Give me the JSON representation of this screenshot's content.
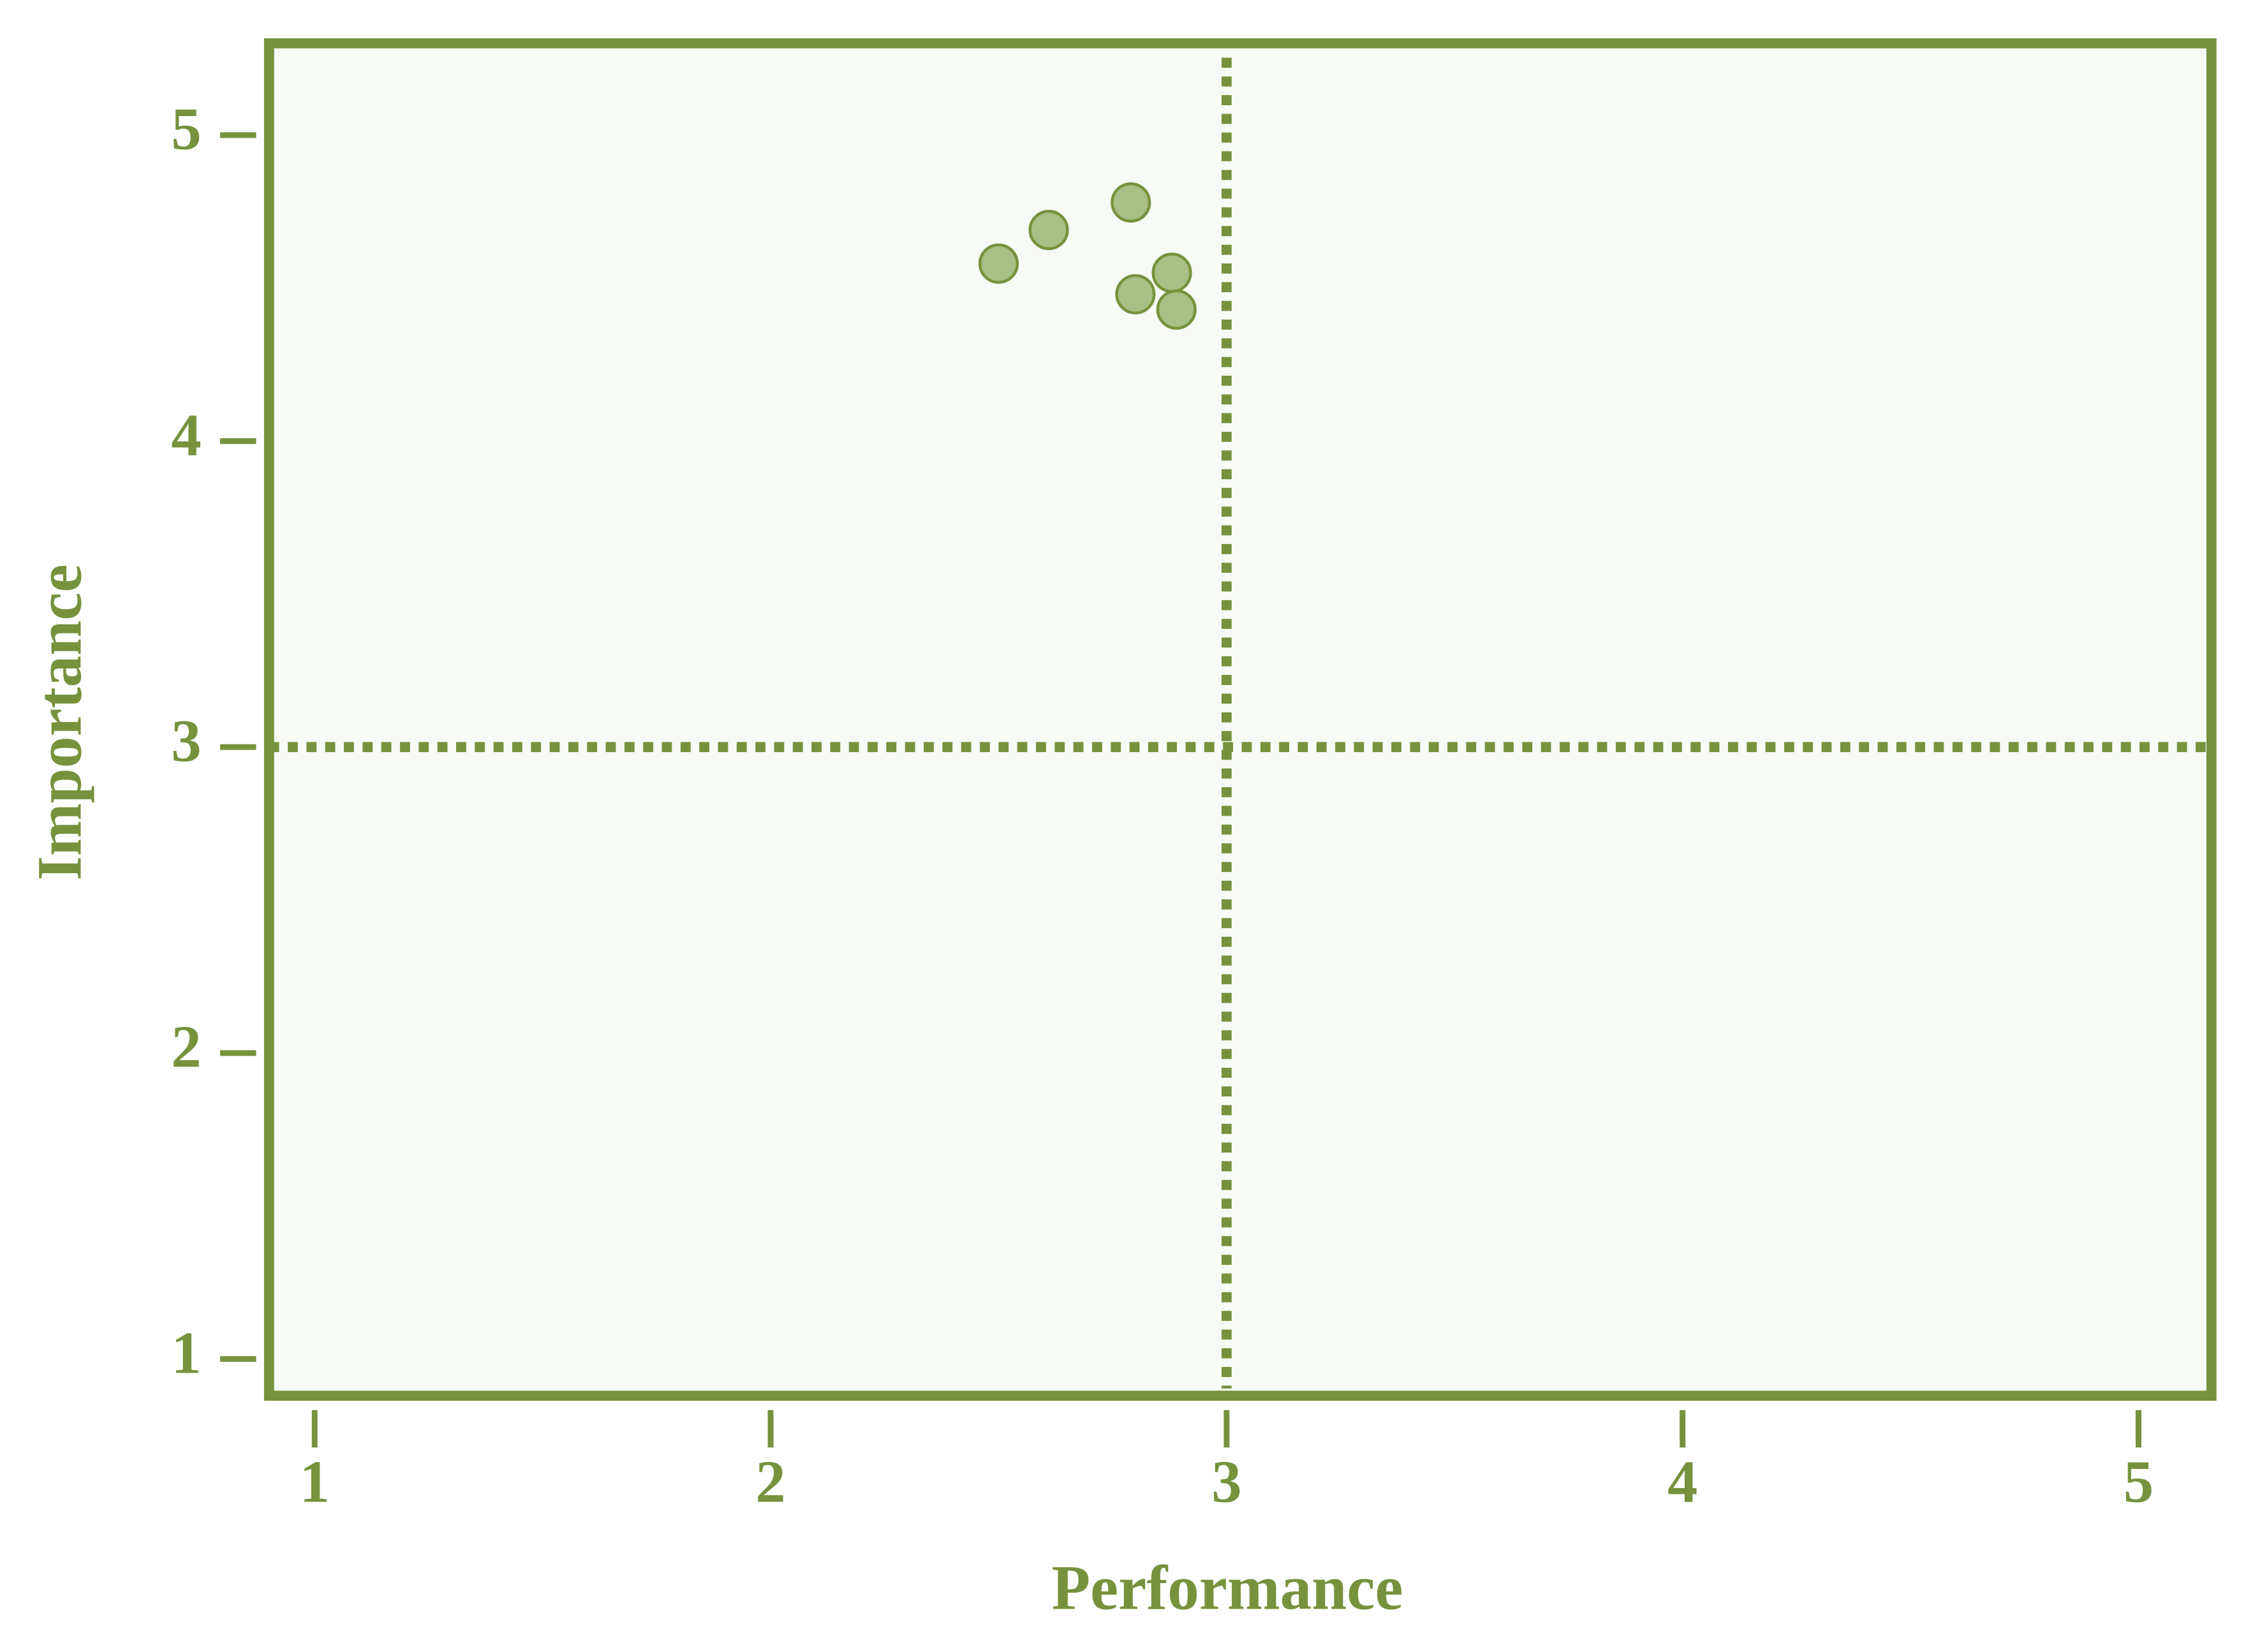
{
  "chart_data": {
    "type": "scatter",
    "x_label": "Performance",
    "y_label": "Importance",
    "series": [
      {
        "color": "#a9bf85",
        "x": [
          2.5,
          2.61,
          2.79,
          2.8,
          2.88,
          2.89
        ],
        "values": [
          4.58,
          4.69,
          4.78,
          4.48,
          4.55,
          4.43
        ]
      }
    ],
    "xlim": [
      0.9,
      5.16
    ],
    "ylim": [
      0.88,
      5.3
    ],
    "xticks": [
      1,
      2,
      3,
      4,
      5
    ],
    "yticks": [
      1,
      2,
      3,
      4,
      5
    ],
    "reference_lines": {
      "x": 3,
      "y": 3
    },
    "axis_color": "#76923c",
    "background": "#f8faf5"
  }
}
